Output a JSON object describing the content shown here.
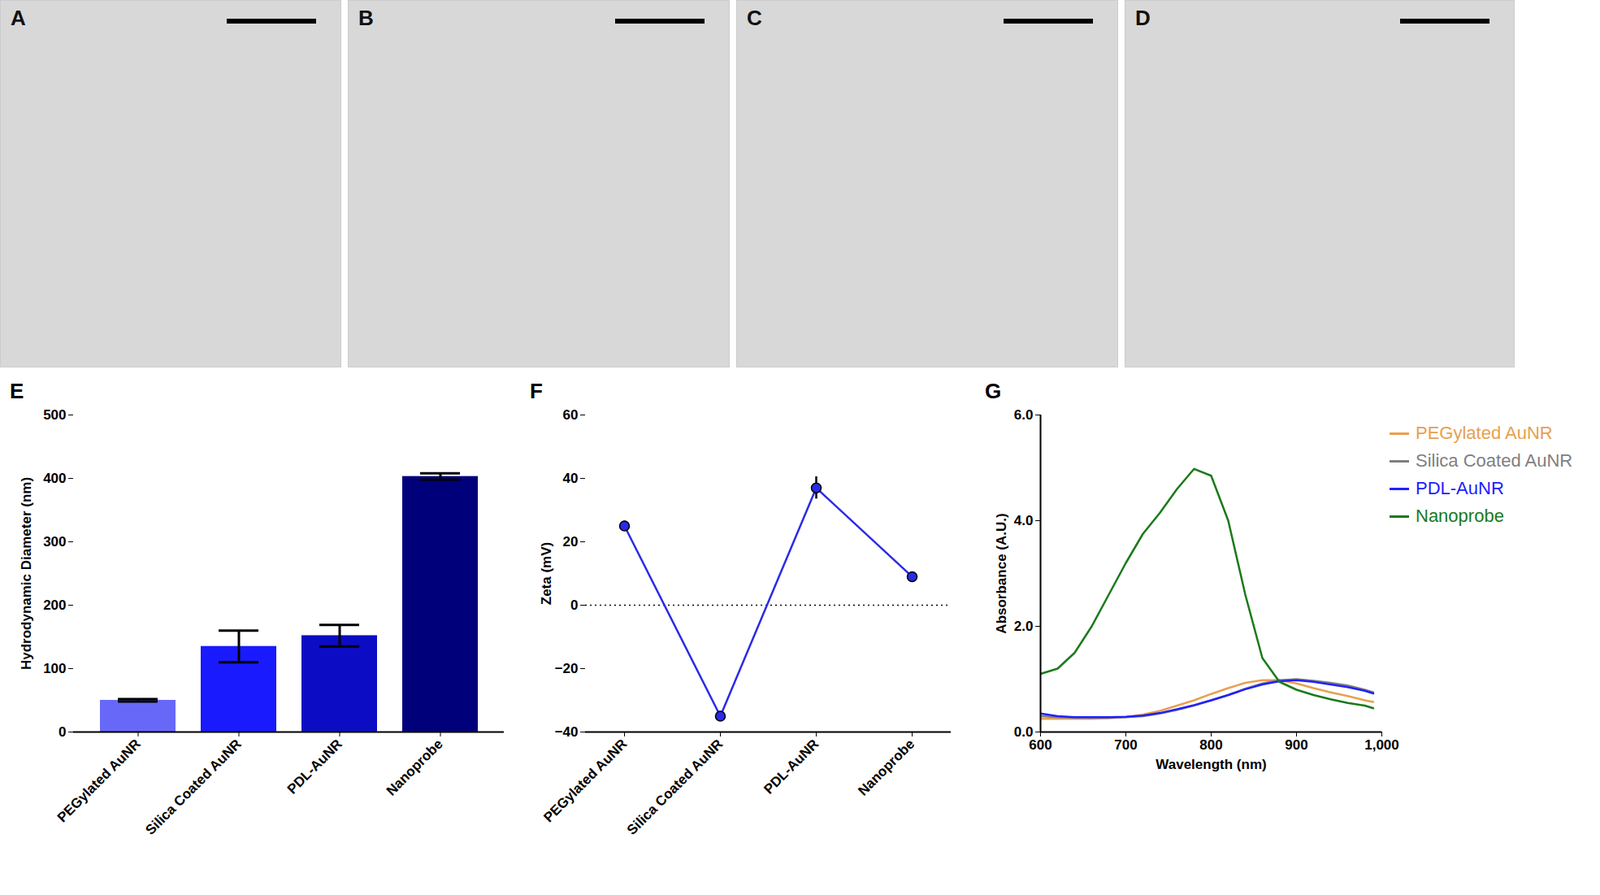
{
  "images": [
    {
      "panel": "A"
    },
    {
      "panel": "B"
    },
    {
      "panel": "C"
    },
    {
      "panel": "D"
    }
  ],
  "chart_data": [
    {
      "panel": "E",
      "type": "bar",
      "categories": [
        "PEGylated AuNR",
        "Silica Coated AuNR",
        "PDL-AuNR",
        "Nanoprobe"
      ],
      "values": [
        50,
        135,
        152,
        403
      ],
      "errors": [
        2,
        25,
        17,
        5
      ],
      "colors": [
        "#6868f8",
        "#1a1aff",
        "#0c0cc4",
        "#00007a"
      ],
      "y_label": "Hydrodynamic Diameter (nm)",
      "ylim": [
        0,
        500
      ],
      "yticks": [
        0,
        100,
        200,
        300,
        400,
        500
      ]
    },
    {
      "panel": "F",
      "type": "line",
      "categories": [
        "PEGylated AuNR",
        "Silica Coated AuNR",
        "PDL-AuNR",
        "Nanoprobe"
      ],
      "values": [
        25,
        -35,
        37,
        9
      ],
      "errors": [
        1.5,
        1.5,
        3.5,
        1
      ],
      "color": "#2a2ae8",
      "marker": "circle",
      "reference_line": 0,
      "y_label": "Zeta (mV)",
      "ylim": [
        -40,
        60
      ],
      "yticks": [
        -40,
        -20,
        0,
        20,
        40,
        60
      ]
    },
    {
      "panel": "G",
      "type": "line",
      "x": [
        600,
        620,
        640,
        660,
        680,
        700,
        720,
        740,
        760,
        780,
        800,
        820,
        840,
        860,
        880,
        900,
        920,
        940,
        960,
        980,
        990
      ],
      "series": [
        {
          "name": "PEGylated AuNR",
          "color": "#e8a050",
          "values": [
            0.25,
            0.25,
            0.25,
            0.25,
            0.26,
            0.28,
            0.33,
            0.4,
            0.5,
            0.6,
            0.72,
            0.83,
            0.93,
            0.98,
            0.98,
            0.92,
            0.83,
            0.75,
            0.68,
            0.6,
            0.57
          ]
        },
        {
          "name": "Silica Coated AuNR",
          "color": "#808080",
          "values": [
            0.3,
            0.28,
            0.27,
            0.27,
            0.27,
            0.28,
            0.3,
            0.35,
            0.42,
            0.5,
            0.6,
            0.7,
            0.82,
            0.92,
            0.98,
            1.0,
            0.97,
            0.93,
            0.88,
            0.8,
            0.75
          ]
        },
        {
          "name": "PDL-AuNR",
          "color": "#2020ff",
          "values": [
            0.35,
            0.3,
            0.28,
            0.28,
            0.28,
            0.29,
            0.31,
            0.36,
            0.43,
            0.51,
            0.6,
            0.7,
            0.81,
            0.9,
            0.96,
            0.98,
            0.95,
            0.9,
            0.85,
            0.78,
            0.73
          ]
        },
        {
          "name": "Nanoprobe",
          "color": "#1a7a1a",
          "values": [
            1.1,
            1.2,
            1.5,
            2.0,
            2.6,
            3.2,
            3.75,
            4.15,
            4.6,
            4.98,
            4.85,
            4.0,
            2.6,
            1.4,
            0.95,
            0.8,
            0.7,
            0.62,
            0.55,
            0.5,
            0.45
          ]
        }
      ],
      "legend": "top-right",
      "x_label": "Wavelength (nm)",
      "y_label": "Absorbance (A.U.)",
      "xlim": [
        600,
        1000
      ],
      "xticks": [
        600,
        700,
        800,
        900,
        1000
      ],
      "ylim": [
        0,
        6
      ],
      "yticks": [
        0,
        2,
        4,
        6
      ]
    }
  ]
}
